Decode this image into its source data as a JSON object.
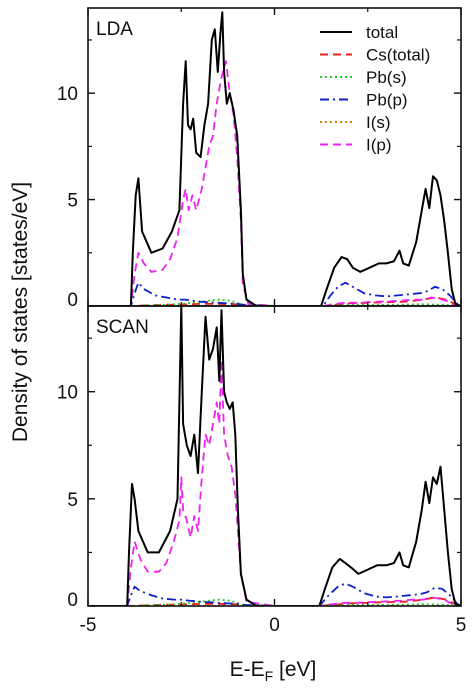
{
  "figure": {
    "ylabel": "Density of states [states/eV]",
    "xlabel_main": "E-E",
    "xlabel_sub": "F",
    "xlabel_unit": " [eV]"
  },
  "legend": [
    {
      "label": "total",
      "color": "#000000",
      "dash": "solid"
    },
    {
      "label": "Cs(total)",
      "color": "#e8201a",
      "dash": "dash"
    },
    {
      "label": "Pb(s)",
      "color": "#22cc22",
      "dash": "dot"
    },
    {
      "label": "Pb(p)",
      "color": "#1020cc",
      "dash": "dashdot"
    },
    {
      "label": "I(s)",
      "color": "#cc8800",
      "dash": "dot"
    },
    {
      "label": "I(p)",
      "color": "#ee22ee",
      "dash": "dash"
    }
  ],
  "chart_data": [
    {
      "type": "line",
      "panel_label": "LDA",
      "xlim": [
        -5,
        5
      ],
      "ylim": [
        0,
        14
      ],
      "xticks": [
        -5,
        0,
        5
      ],
      "yticks": [
        0,
        5,
        10
      ],
      "series": [
        {
          "name": "total",
          "x": [
            -5,
            -3.85,
            -3.8,
            -3.72,
            -3.65,
            -3.55,
            -3.3,
            -3.0,
            -2.75,
            -2.55,
            -2.45,
            -2.38,
            -2.32,
            -2.25,
            -2.18,
            -2.1,
            -1.98,
            -1.88,
            -1.78,
            -1.68,
            -1.6,
            -1.52,
            -1.45,
            -1.4,
            -1.35,
            -1.28,
            -1.2,
            -1.1,
            -1.0,
            -0.9,
            -0.85,
            -0.75,
            -0.5,
            0,
            1.25,
            1.4,
            1.6,
            1.8,
            1.95,
            2.1,
            2.3,
            2.55,
            2.8,
            3.0,
            3.2,
            3.35,
            3.45,
            3.6,
            3.8,
            3.95,
            4.05,
            4.15,
            4.25,
            4.35,
            4.45,
            4.55,
            4.65,
            4.75,
            4.85,
            5
          ],
          "y": [
            0,
            0,
            2.5,
            5.2,
            6.0,
            3.5,
            2.5,
            2.7,
            3.5,
            4.5,
            9.5,
            11.5,
            8.5,
            8.3,
            8.8,
            7.2,
            7.0,
            8.5,
            9.5,
            12.5,
            13.0,
            11.0,
            12.8,
            13.8,
            11.0,
            9.5,
            10.0,
            9.2,
            8.0,
            4.5,
            1.5,
            0.3,
            0.02,
            0,
            0,
            0.8,
            1.8,
            2.3,
            2.2,
            1.8,
            1.6,
            1.8,
            2.0,
            2.0,
            2.1,
            2.6,
            2.0,
            1.9,
            3.0,
            4.5,
            5.5,
            4.6,
            6.1,
            5.9,
            5.2,
            4.0,
            2.5,
            0.8,
            0.1,
            0
          ]
        },
        {
          "name": "Cs(total)",
          "x": [
            -5,
            -3.8,
            -3.5,
            -3.0,
            -2.5,
            -2.0,
            -1.5,
            -1.0,
            -0.8,
            0,
            1.3,
            2.0,
            2.5,
            3.0,
            3.5,
            4.0,
            4.3,
            4.6,
            4.9,
            5
          ],
          "y": [
            0,
            0,
            0.03,
            0.05,
            0.07,
            0.1,
            0.1,
            0.08,
            0.02,
            0,
            0,
            0.12,
            0.15,
            0.18,
            0.2,
            0.3,
            0.4,
            0.3,
            0.05,
            0
          ]
        },
        {
          "name": "Pb(s)",
          "x": [
            -5,
            -3.8,
            -3.0,
            -2.5,
            -2.0,
            -1.5,
            -1.2,
            -1.0,
            -0.8,
            0,
            1.3,
            2.0,
            3.0,
            4.0,
            4.6,
            5
          ],
          "y": [
            0,
            0,
            0.05,
            0.1,
            0.2,
            0.3,
            0.25,
            0.15,
            0.03,
            0,
            0,
            0.05,
            0.05,
            0.08,
            0.05,
            0
          ]
        },
        {
          "name": "Pb(p)",
          "x": [
            -5,
            -3.85,
            -3.75,
            -3.65,
            -3.5,
            -3.2,
            -2.9,
            -2.6,
            -2.4,
            -2.2,
            -2.0,
            -1.5,
            -1.0,
            -0.8,
            0,
            1.3,
            1.5,
            1.7,
            1.9,
            2.1,
            2.4,
            2.7,
            3.0,
            3.3,
            3.6,
            3.9,
            4.1,
            4.3,
            4.5,
            4.7,
            4.9,
            5
          ],
          "y": [
            0,
            0,
            0.6,
            1.1,
            0.8,
            0.5,
            0.4,
            0.3,
            0.3,
            0.25,
            0.2,
            0.15,
            0.1,
            0.05,
            0,
            0,
            0.5,
            0.9,
            1.1,
            0.9,
            0.6,
            0.5,
            0.45,
            0.5,
            0.55,
            0.6,
            0.7,
            0.9,
            0.8,
            0.5,
            0.1,
            0
          ]
        },
        {
          "name": "I(s)",
          "x": [
            -5,
            5
          ],
          "y": [
            0,
            0
          ]
        },
        {
          "name": "I(p)",
          "x": [
            -5,
            -3.85,
            -3.75,
            -3.65,
            -3.5,
            -3.3,
            -3.0,
            -2.8,
            -2.6,
            -2.45,
            -2.38,
            -2.3,
            -2.2,
            -2.1,
            -1.95,
            -1.85,
            -1.75,
            -1.65,
            -1.55,
            -1.45,
            -1.38,
            -1.3,
            -1.2,
            -1.1,
            -1.0,
            -0.9,
            -0.85,
            -0.7,
            0,
            1.3,
            1.6,
            1.9,
            2.2,
            2.5,
            2.8,
            3.1,
            3.4,
            3.7,
            4.0,
            4.2,
            4.4,
            4.6,
            4.8,
            5
          ],
          "y": [
            0,
            0,
            1.5,
            2.5,
            2.0,
            1.6,
            1.7,
            2.2,
            3.2,
            5.0,
            5.5,
            4.5,
            5.2,
            4.5,
            5.5,
            6.5,
            7.5,
            8.0,
            9.5,
            10.5,
            11.0,
            11.5,
            10.0,
            9.0,
            7.0,
            4.0,
            1.0,
            0.1,
            0,
            0,
            0.1,
            0.15,
            0.15,
            0.18,
            0.2,
            0.22,
            0.25,
            0.3,
            0.3,
            0.4,
            0.35,
            0.25,
            0.05,
            0
          ]
        }
      ]
    },
    {
      "type": "line",
      "panel_label": "SCAN",
      "xlim": [
        -5,
        5
      ],
      "ylim": [
        0,
        14
      ],
      "xticks": [
        -5,
        0,
        5
      ],
      "yticks": [
        0,
        5,
        10
      ],
      "series": [
        {
          "name": "total",
          "x": [
            -5,
            -3.95,
            -3.9,
            -3.82,
            -3.75,
            -3.65,
            -3.4,
            -3.1,
            -2.8,
            -2.6,
            -2.5,
            -2.45,
            -2.35,
            -2.25,
            -2.15,
            -2.05,
            -1.95,
            -1.85,
            -1.75,
            -1.65,
            -1.55,
            -1.48,
            -1.42,
            -1.35,
            -1.28,
            -1.2,
            -1.12,
            -1.05,
            -0.98,
            -0.9,
            -0.75,
            -0.5,
            0,
            1.2,
            1.35,
            1.55,
            1.75,
            1.9,
            2.05,
            2.25,
            2.5,
            2.75,
            3.0,
            3.2,
            3.35,
            3.45,
            3.6,
            3.8,
            3.95,
            4.05,
            4.15,
            4.25,
            4.35,
            4.45,
            4.55,
            4.65,
            4.75,
            4.85,
            5
          ],
          "y": [
            0,
            0,
            2.5,
            5.7,
            5.0,
            3.5,
            2.5,
            2.5,
            3.5,
            5.0,
            14.0,
            8.5,
            7.5,
            7.0,
            8.0,
            6.2,
            10.0,
            13.5,
            11.5,
            12.0,
            13.0,
            10.5,
            13.8,
            10.0,
            9.5,
            9.2,
            9.5,
            8.0,
            4.5,
            1.5,
            0.3,
            0.02,
            0,
            0,
            0.8,
            1.8,
            2.2,
            2.0,
            1.8,
            1.5,
            1.7,
            1.9,
            1.9,
            2.0,
            2.5,
            1.9,
            1.8,
            3.0,
            4.5,
            5.8,
            4.8,
            6.0,
            5.7,
            6.5,
            4.5,
            2.5,
            0.8,
            0.1,
            0
          ]
        },
        {
          "name": "Cs(total)",
          "x": [
            -5,
            -3.9,
            -3.5,
            -3.0,
            -2.5,
            -2.0,
            -1.5,
            -1.0,
            -0.8,
            0,
            1.2,
            2.0,
            2.5,
            3.0,
            3.5,
            4.0,
            4.3,
            4.6,
            4.9,
            5
          ],
          "y": [
            0,
            0,
            0.03,
            0.05,
            0.07,
            0.1,
            0.1,
            0.08,
            0.02,
            0,
            0,
            0.12,
            0.15,
            0.18,
            0.2,
            0.3,
            0.4,
            0.3,
            0.05,
            0
          ]
        },
        {
          "name": "Pb(s)",
          "x": [
            -5,
            -3.9,
            -3.0,
            -2.5,
            -2.0,
            -1.5,
            -1.2,
            -1.0,
            -0.8,
            0,
            1.2,
            2.0,
            3.0,
            4.0,
            4.6,
            5
          ],
          "y": [
            0,
            0,
            0.05,
            0.1,
            0.2,
            0.3,
            0.25,
            0.15,
            0.03,
            0,
            0,
            0.05,
            0.05,
            0.08,
            0.05,
            0
          ]
        },
        {
          "name": "Pb(p)",
          "x": [
            -5,
            -3.95,
            -3.85,
            -3.75,
            -3.6,
            -3.3,
            -3.0,
            -2.7,
            -2.5,
            -2.3,
            -2.0,
            -1.5,
            -1.0,
            -0.8,
            0,
            1.2,
            1.45,
            1.7,
            1.9,
            2.1,
            2.4,
            2.7,
            3.0,
            3.3,
            3.6,
            3.9,
            4.1,
            4.3,
            4.5,
            4.7,
            4.9,
            5
          ],
          "y": [
            0,
            0,
            0.5,
            0.9,
            0.7,
            0.5,
            0.35,
            0.3,
            0.3,
            0.25,
            0.2,
            0.15,
            0.1,
            0.05,
            0,
            0,
            0.5,
            0.9,
            1.05,
            0.9,
            0.6,
            0.45,
            0.4,
            0.45,
            0.5,
            0.55,
            0.65,
            0.85,
            0.8,
            0.5,
            0.1,
            0
          ]
        },
        {
          "name": "I(s)",
          "x": [
            -5,
            5
          ],
          "y": [
            0,
            0
          ]
        },
        {
          "name": "I(p)",
          "x": [
            -5,
            -3.95,
            -3.85,
            -3.75,
            -3.6,
            -3.4,
            -3.1,
            -2.9,
            -2.7,
            -2.55,
            -2.5,
            -2.45,
            -2.35,
            -2.25,
            -2.15,
            -2.05,
            -1.95,
            -1.85,
            -1.75,
            -1.65,
            -1.55,
            -1.48,
            -1.42,
            -1.35,
            -1.25,
            -1.15,
            -1.05,
            -0.98,
            -0.9,
            -0.75,
            0,
            1.2,
            1.6,
            1.9,
            2.2,
            2.5,
            2.8,
            3.1,
            3.4,
            3.7,
            4.0,
            4.2,
            4.4,
            4.6,
            4.8,
            5
          ],
          "y": [
            0,
            0,
            1.8,
            3.0,
            2.2,
            1.6,
            1.6,
            2.0,
            3.0,
            4.0,
            6.0,
            4.5,
            4.0,
            3.2,
            4.2,
            3.5,
            6.0,
            8.0,
            7.5,
            8.5,
            9.5,
            8.5,
            11.5,
            8.0,
            7.0,
            6.5,
            5.2,
            3.5,
            1.5,
            0.2,
            0,
            0,
            0.1,
            0.15,
            0.15,
            0.18,
            0.2,
            0.22,
            0.25,
            0.3,
            0.3,
            0.4,
            0.35,
            0.25,
            0.05,
            0
          ]
        }
      ]
    }
  ]
}
